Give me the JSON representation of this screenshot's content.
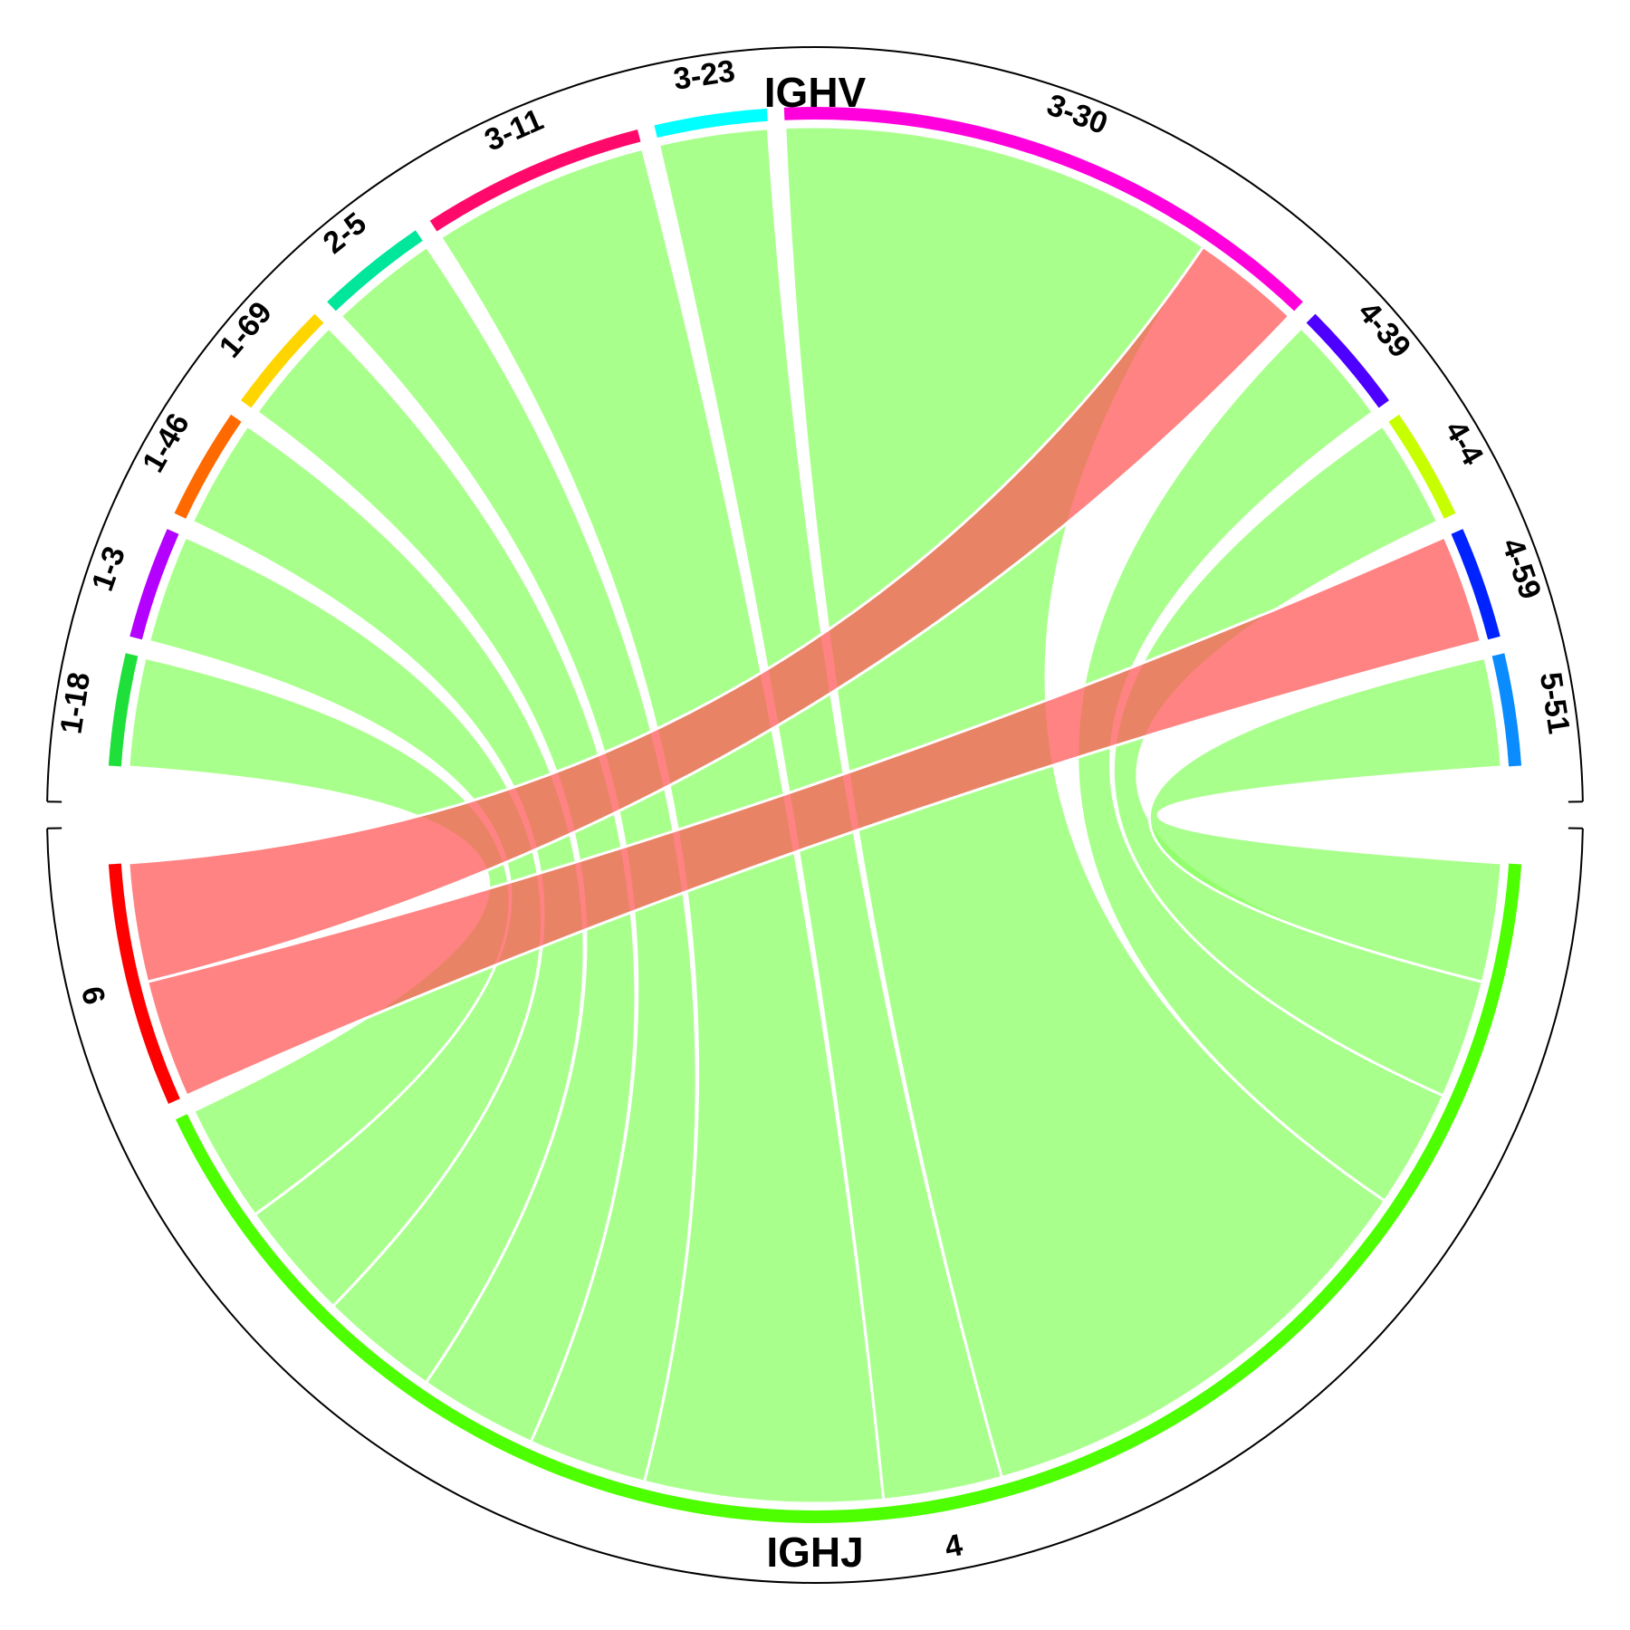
{
  "chart_data": {
    "type": "chord",
    "groups": [
      {
        "name": "IGHV",
        "segments": [
          "1-18",
          "1-3",
          "1-46",
          "1-69",
          "2-5",
          "3-11",
          "3-23",
          "3-30",
          "4-39",
          "4-4",
          "4-59",
          "5-51"
        ]
      },
      {
        "name": "IGHJ",
        "segments": [
          "6",
          "4"
        ]
      }
    ],
    "segment_colors": {
      "1-18": "#1fe03a",
      "1-3": "#b300ff",
      "1-46": "#ff6a00",
      "1-69": "#ffd500",
      "2-5": "#00e69a",
      "3-11": "#ff0a6a",
      "3-23": "#00ffff",
      "3-30": "#ff00dd",
      "4-39": "#4d00ff",
      "4-4": "#c8ff00",
      "4-59": "#0022ff",
      "5-51": "#0a8cff",
      "6": "#ff0000",
      "4": "#4dff00"
    },
    "links": [
      {
        "source": "1-18",
        "target": "4",
        "value": 1,
        "color": "#8cff66"
      },
      {
        "source": "1-3",
        "target": "4",
        "value": 1,
        "color": "#8cff66"
      },
      {
        "source": "1-46",
        "target": "4",
        "value": 1,
        "color": "#8cff66"
      },
      {
        "source": "1-69",
        "target": "4",
        "value": 1,
        "color": "#8cff66"
      },
      {
        "source": "2-5",
        "target": "4",
        "value": 1,
        "color": "#8cff66"
      },
      {
        "source": "3-11",
        "target": "4",
        "value": 2,
        "color": "#8cff66"
      },
      {
        "source": "3-23",
        "target": "4",
        "value": 1,
        "color": "#8cff66"
      },
      {
        "source": "3-30",
        "target": "4",
        "value": 4,
        "color": "#8cff66"
      },
      {
        "source": "3-30",
        "target": "6",
        "value": 1,
        "color": "#ff5a5a"
      },
      {
        "source": "4-39",
        "target": "4",
        "value": 1,
        "color": "#8cff66"
      },
      {
        "source": "4-4",
        "target": "4",
        "value": 1,
        "color": "#8cff66"
      },
      {
        "source": "4-59",
        "target": "6",
        "value": 1,
        "color": "#ff5a5a"
      },
      {
        "source": "5-51",
        "target": "4",
        "value": 1,
        "color": "#8cff66"
      }
    ]
  }
}
